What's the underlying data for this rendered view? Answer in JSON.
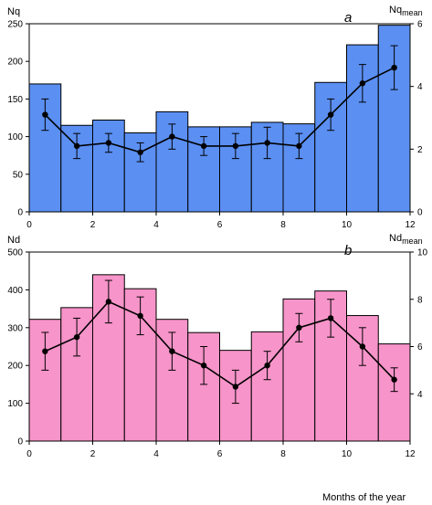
{
  "chart_data": [
    {
      "type": "bar",
      "panel_label": "a",
      "bar_color": "#5b8ff2",
      "xlabel": "",
      "ylabel_left": "Nq",
      "ylabel_right_main": "Nq",
      "ylabel_right_sub": "mean",
      "xlim": [
        0,
        12
      ],
      "x_ticks": [
        0,
        2,
        4,
        6,
        8,
        10,
        12
      ],
      "left_axis": {
        "lim": [
          0,
          250
        ],
        "ticks": [
          0,
          50,
          100,
          150,
          200,
          250
        ]
      },
      "right_axis": {
        "lim": [
          0,
          6
        ],
        "ticks": [
          0,
          2,
          4,
          6
        ]
      },
      "bars": {
        "x": [
          0.5,
          1.5,
          2.5,
          3.5,
          4.5,
          5.5,
          6.5,
          7.5,
          8.5,
          9.5,
          10.5,
          11.5
        ],
        "values": [
          170,
          115,
          122,
          105,
          133,
          113,
          113,
          119,
          117,
          172,
          222,
          248
        ]
      },
      "line": {
        "x": [
          0.5,
          1.5,
          2.5,
          3.5,
          4.5,
          5.5,
          6.5,
          7.5,
          8.5,
          9.5,
          10.5,
          11.5
        ],
        "values": [
          3.1,
          2.1,
          2.2,
          1.9,
          2.4,
          2.1,
          2.1,
          2.2,
          2.1,
          3.1,
          4.1,
          4.6
        ],
        "errors": [
          0.5,
          0.4,
          0.3,
          0.3,
          0.4,
          0.3,
          0.4,
          0.5,
          0.4,
          0.5,
          0.6,
          0.7
        ]
      }
    },
    {
      "type": "bar",
      "panel_label": "b",
      "bar_color": "#f794c9",
      "xlabel": "Months of the year",
      "ylabel_left": "Nd",
      "ylabel_right_main": "Nd",
      "ylabel_right_sub": "mean",
      "xlim": [
        0,
        12
      ],
      "x_ticks": [
        0,
        2,
        4,
        6,
        8,
        10,
        12
      ],
      "left_axis": {
        "lim": [
          0,
          500
        ],
        "ticks": [
          0,
          100,
          200,
          300,
          400,
          500
        ]
      },
      "right_axis": {
        "lim": [
          2,
          10
        ],
        "ticks": [
          4,
          6,
          8,
          10
        ]
      },
      "bars": {
        "x": [
          0.5,
          1.5,
          2.5,
          3.5,
          4.5,
          5.5,
          6.5,
          7.5,
          8.5,
          9.5,
          10.5,
          11.5
        ],
        "values": [
          322,
          353,
          440,
          403,
          322,
          287,
          240,
          289,
          376,
          397,
          332,
          257
        ]
      },
      "line": {
        "x": [
          0.5,
          1.5,
          2.5,
          3.5,
          4.5,
          5.5,
          6.5,
          7.5,
          8.5,
          9.5,
          10.5,
          11.5
        ],
        "values": [
          5.8,
          6.4,
          7.9,
          7.3,
          5.8,
          5.2,
          4.3,
          5.2,
          6.8,
          7.2,
          6.0,
          4.6
        ],
        "errors": [
          0.8,
          0.8,
          0.9,
          0.8,
          0.8,
          0.8,
          0.7,
          0.6,
          0.6,
          0.8,
          0.8,
          0.5
        ]
      }
    }
  ]
}
